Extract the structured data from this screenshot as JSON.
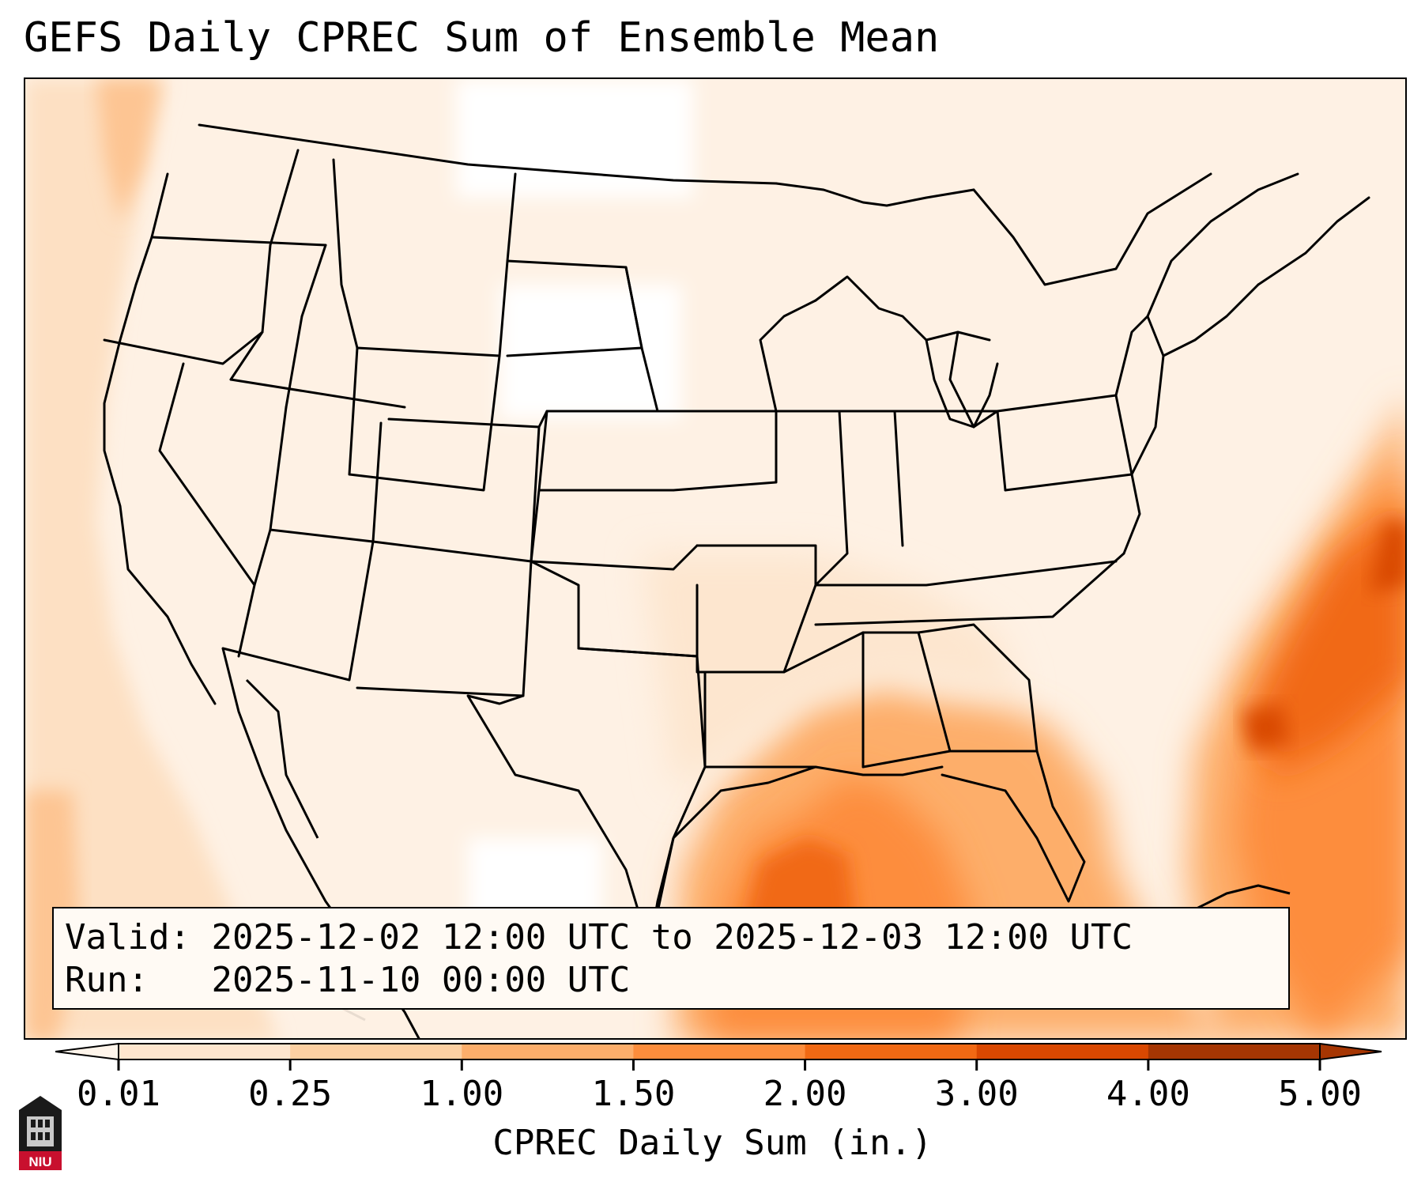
{
  "title": "GEFS Daily CPREC Sum of Ensemble Mean",
  "info": {
    "valid_label": "Valid:",
    "valid_value": "2025-12-02 12:00 UTC to 2025-12-03 12:00 UTC",
    "run_label": "Run:",
    "run_value": "2025-11-10 00:00 UTC"
  },
  "colorbar": {
    "label": "CPREC Daily Sum (in.)",
    "ticks": [
      "0.01",
      "0.25",
      "1.00",
      "1.50",
      "2.00",
      "3.00",
      "4.00",
      "5.00"
    ],
    "colors": [
      "#fff5eb",
      "#fee6ce",
      "#fdd0a2",
      "#fdae6b",
      "#fd8d3c",
      "#f16913",
      "#d94801",
      "#a63603"
    ],
    "extend": "both"
  },
  "logo": {
    "text": "NIU",
    "icon": "niu-logo-icon"
  }
}
